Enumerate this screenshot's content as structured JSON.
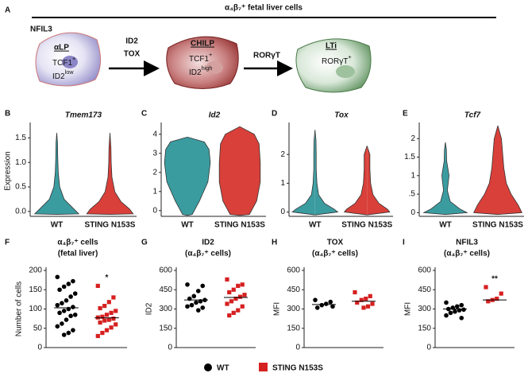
{
  "diagram": {
    "label": "A",
    "title": "α₄β₇⁺ fetal liver cells",
    "top_label": "NFIL3",
    "nodes": [
      {
        "name": "αLP",
        "lines": [
          {
            "text": "TCF1",
            "sup": "+"
          },
          {
            "text": "ID2",
            "sup": "low"
          }
        ]
      },
      {
        "name": "CHILP",
        "lines": [
          {
            "text": "TCF1",
            "sup": "+"
          },
          {
            "text": "ID2",
            "sup": "high"
          }
        ]
      },
      {
        "name": "LTi",
        "lines": [
          {
            "text": "RORγT",
            "sup": "+"
          }
        ]
      }
    ],
    "arrows": [
      {
        "lines": [
          "ID2",
          "TOX"
        ]
      },
      {
        "lines": [
          "RORγT"
        ]
      }
    ]
  },
  "chart_data": [
    {
      "type": "violin",
      "label": "B",
      "title": "Tmem173",
      "ylabel": "Expression",
      "categories": [
        "WT",
        "STING N153S"
      ],
      "ylim": [
        -0.1,
        1.75
      ],
      "yticks": [
        {
          "value": 0,
          "label": "0.0"
        },
        {
          "value": 0.5,
          "label": "0.5"
        },
        {
          "value": 1,
          "label": "1.0"
        },
        1.5
      ],
      "series": [
        {
          "name": "WT",
          "color": "#3b9ca0",
          "y": [
            -0.06,
            -0.05,
            0.1,
            0.25,
            0.5,
            0.8,
            1.1,
            1.4,
            1.6
          ],
          "density": [
            0,
            0.9,
            0.6,
            0.3,
            0.12,
            0.06,
            0.04,
            0.03,
            0
          ]
        },
        {
          "name": "STING N153S",
          "color": "#d9403a",
          "y": [
            -0.06,
            -0.05,
            0.05,
            0.2,
            0.4,
            0.7,
            1.0,
            1.3,
            1.6
          ],
          "density": [
            0,
            0.95,
            0.8,
            0.45,
            0.2,
            0.08,
            0.05,
            0.04,
            0
          ]
        }
      ]
    },
    {
      "type": "violin",
      "label": "C",
      "title": "Id2",
      "categories": [
        "WT",
        "STING N153S"
      ],
      "ylim": [
        -0.3,
        4.45
      ],
      "yticks": [
        0,
        1,
        2,
        3,
        4
      ],
      "series": [
        {
          "name": "WT",
          "color": "#3b9ca0",
          "y": [
            -0.25,
            -0.2,
            0.5,
            1.5,
            2.5,
            3.2,
            3.6,
            3.85
          ],
          "density": [
            0,
            0.2,
            0.5,
            0.85,
            0.95,
            0.9,
            0.7,
            0
          ]
        },
        {
          "name": "STING N153S",
          "color": "#d9403a",
          "y": [
            -0.25,
            -0.2,
            0.5,
            1.5,
            2.5,
            3.5,
            4.0,
            4.4
          ],
          "density": [
            0,
            0.4,
            0.7,
            0.85,
            0.85,
            0.8,
            0.6,
            0
          ]
        }
      ]
    },
    {
      "type": "violin",
      "label": "D",
      "title": "Tox",
      "categories": [
        "WT",
        "STING N153S"
      ],
      "ylim": [
        -0.15,
        3.0
      ],
      "yticks": [
        0,
        1,
        2
      ],
      "series": [
        {
          "name": "WT",
          "color": "#3b9ca0",
          "y": [
            -0.1,
            0,
            0.1,
            0.3,
            0.6,
            1.0,
            1.5,
            2.0,
            2.5,
            2.85
          ],
          "density": [
            0,
            0.95,
            0.8,
            0.4,
            0.15,
            0.08,
            0.05,
            0.05,
            0.04,
            0
          ]
        },
        {
          "name": "STING N153S",
          "color": "#d9403a",
          "y": [
            -0.1,
            0,
            0.1,
            0.3,
            0.6,
            1.0,
            1.5,
            2.0,
            2.3
          ],
          "density": [
            0,
            0.95,
            0.85,
            0.5,
            0.25,
            0.15,
            0.12,
            0.12,
            0
          ]
        }
      ]
    },
    {
      "type": "violin",
      "label": "E",
      "title": "Tcf7",
      "categories": [
        "WT",
        "STING N153S"
      ],
      "ylim": [
        -0.1,
        2.35
      ],
      "yticks": [
        0,
        {
          "value": 0.5,
          "label": ".5"
        },
        1,
        1.5,
        2
      ],
      "series": [
        {
          "name": "WT",
          "color": "#3b9ca0",
          "y": [
            -0.05,
            0,
            0.1,
            0.3,
            0.6,
            1.0,
            1.4,
            1.7,
            1.9
          ],
          "density": [
            0,
            0.9,
            0.6,
            0.2,
            0.08,
            0.15,
            0.05,
            0.04,
            0
          ]
        },
        {
          "name": "STING N153S",
          "color": "#d9403a",
          "y": [
            -0.05,
            0,
            0.2,
            0.5,
            0.8,
            1.2,
            1.6,
            2.0,
            2.35
          ],
          "density": [
            0,
            1,
            0.85,
            0.55,
            0.35,
            0.25,
            0.2,
            0.15,
            0
          ]
        }
      ]
    },
    {
      "type": "dot",
      "label": "F",
      "title": [
        "α₄β₇⁺ cells",
        "(fetal liver)"
      ],
      "ylabel": "Number of cells",
      "annotation": "*",
      "ylim": [
        0,
        200
      ],
      "yticks": [
        0,
        50,
        100,
        150,
        200
      ],
      "series": [
        {
          "name": "WT",
          "color": "#000000",
          "marker": "circle",
          "median": 103,
          "values": [
            183,
            172,
            165,
            158,
            150,
            140,
            132,
            122,
            115,
            110,
            105,
            100,
            95,
            90,
            85,
            82,
            72,
            62,
            55,
            45,
            38,
            33
          ]
        },
        {
          "name": "STING N153S",
          "color": "#d62020",
          "marker": "square",
          "median": 77,
          "values": [
            160,
            130,
            118,
            108,
            102,
            95,
            90,
            85,
            80,
            78,
            75,
            72,
            70,
            65,
            60,
            52,
            45,
            38,
            30
          ]
        }
      ]
    },
    {
      "type": "dot",
      "label": "G",
      "title": [
        "ID2",
        "(α₄β₇⁺ cells)"
      ],
      "ylabel": "ID2",
      "ylim": [
        0,
        600
      ],
      "yticks": [
        0,
        150,
        300,
        450,
        600
      ],
      "series": [
        {
          "name": "WT",
          "color": "#000000",
          "marker": "circle",
          "median": 370,
          "values": [
            490,
            480,
            440,
            400,
            380,
            370,
            360,
            350,
            330,
            320,
            310,
            290
          ]
        },
        {
          "name": "STING N153S",
          "color": "#d62020",
          "marker": "square",
          "median": 390,
          "values": [
            530,
            490,
            480,
            450,
            430,
            410,
            395,
            380,
            360,
            340,
            320,
            290,
            270,
            250
          ]
        }
      ]
    },
    {
      "type": "dot",
      "label": "H",
      "title": [
        "TOX",
        "(α₄β₇⁺ cells)"
      ],
      "ylabel": "MFI",
      "ylim": [
        0,
        600
      ],
      "yticks": [
        0,
        150,
        300,
        450,
        600
      ],
      "series": [
        {
          "name": "WT",
          "color": "#000000",
          "marker": "circle",
          "median": 335,
          "values": [
            370,
            355,
            340,
            330,
            310,
            320
          ]
        },
        {
          "name": "STING N153S",
          "color": "#d62020",
          "marker": "square",
          "median": 360,
          "values": [
            430,
            400,
            380,
            370,
            350,
            340,
            320,
            310
          ]
        }
      ]
    },
    {
      "type": "dot",
      "label": "I",
      "title": [
        "NFIL3",
        "(α₄β₇⁺ cells)"
      ],
      "ylabel": "MFI",
      "annotation": "**",
      "ylim": [
        0,
        600
      ],
      "yticks": [
        0,
        150,
        300,
        450,
        600
      ],
      "series": [
        {
          "name": "WT",
          "color": "#000000",
          "marker": "circle",
          "median": 300,
          "values": [
            350,
            330,
            320,
            310,
            300,
            295,
            290,
            280,
            270,
            250,
            230
          ]
        },
        {
          "name": "STING N153S",
          "color": "#d62020",
          "marker": "square",
          "median": 370,
          "values": [
            470,
            420,
            380,
            370,
            360
          ]
        }
      ]
    }
  ]
}
